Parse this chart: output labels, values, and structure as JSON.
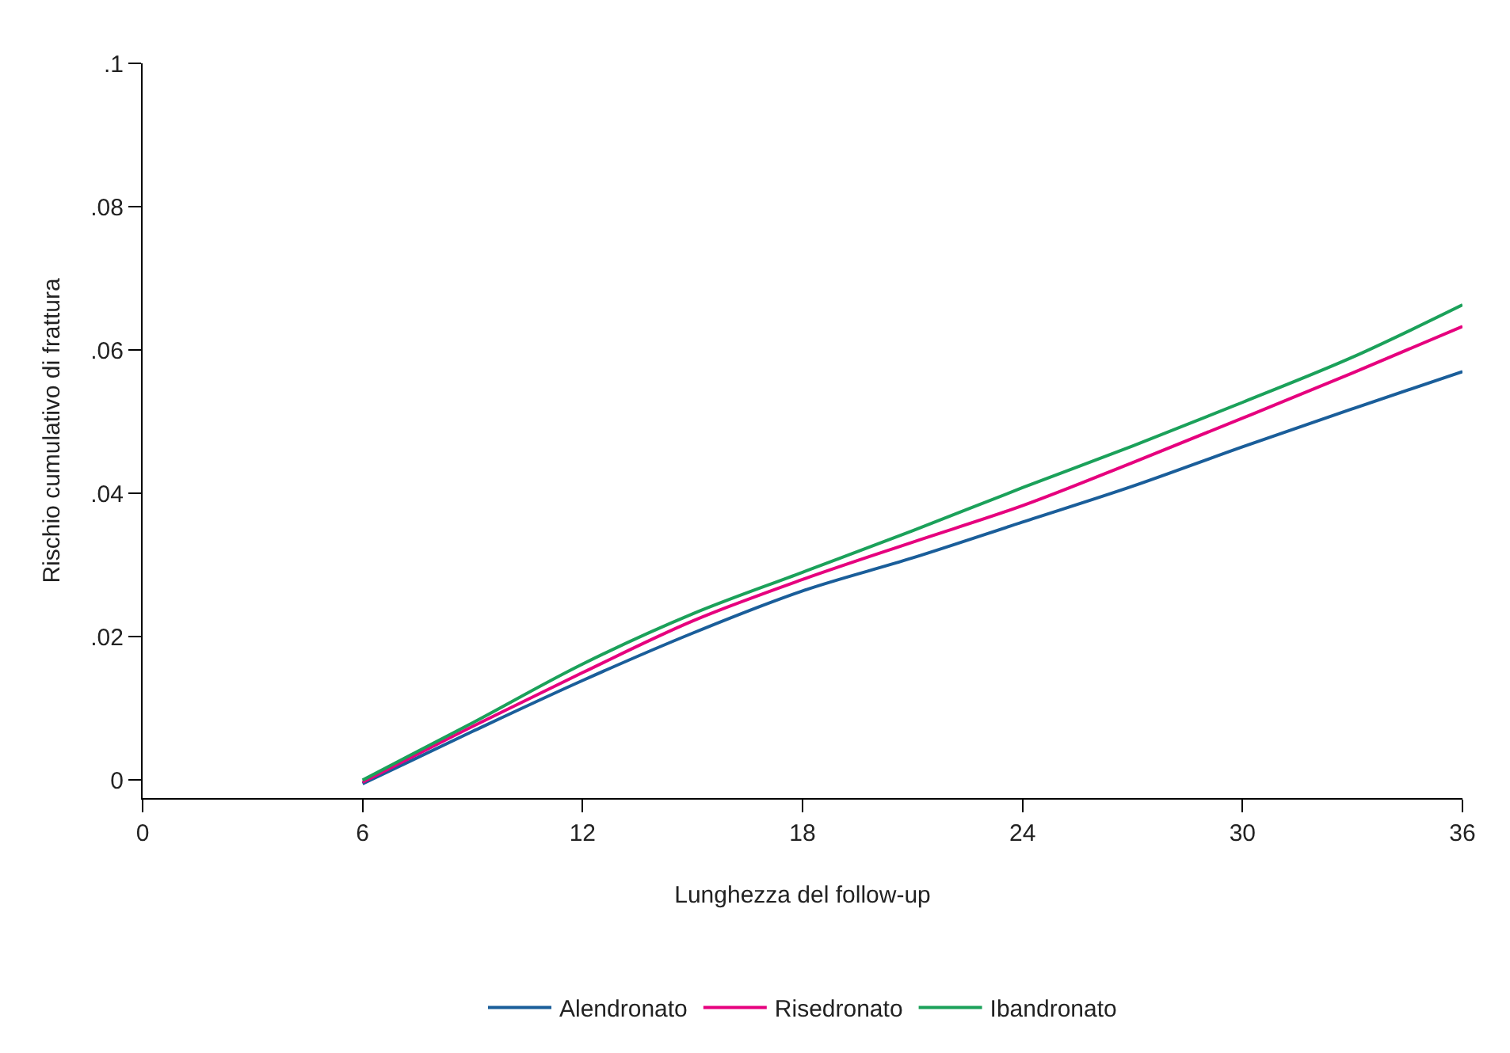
{
  "chart_data": {
    "type": "line",
    "xlabel": "Lunghezza del follow-up",
    "ylabel": "Rischio cumulativo di frattura",
    "x": [
      6,
      9,
      12,
      15,
      18,
      21,
      24,
      27,
      30,
      33,
      36
    ],
    "series": [
      {
        "name": "Alendronato",
        "color": "#1a5e9a",
        "values": [
          -0.0005,
          0.0068,
          0.0139,
          0.0205,
          0.0264,
          0.031,
          0.036,
          0.041,
          0.0465,
          0.0518,
          0.057
        ]
      },
      {
        "name": "Risedronato",
        "color": "#e6007e",
        "values": [
          -0.0003,
          0.0075,
          0.015,
          0.0222,
          0.028,
          0.0332,
          0.0383,
          0.0443,
          0.0505,
          0.0568,
          0.0633
        ]
      },
      {
        "name": "Ibandronato",
        "color": "#1ba15a",
        "values": [
          0.0,
          0.008,
          0.0162,
          0.0232,
          0.029,
          0.0348,
          0.0408,
          0.0466,
          0.0527,
          0.059,
          0.0663
        ]
      }
    ],
    "xlim": [
      0,
      36
    ],
    "xticks": [
      0,
      6,
      12,
      18,
      24,
      30,
      36
    ],
    "ylim": [
      -0.0025,
      0.1
    ],
    "yticks": [
      {
        "value": 0,
        "label": "0"
      },
      {
        "value": 0.02,
        "label": ".02"
      },
      {
        "value": 0.04,
        "label": ".04"
      },
      {
        "value": 0.06,
        "label": ".06"
      },
      {
        "value": 0.08,
        "label": ".08"
      },
      {
        "value": 0.1,
        "label": ".1"
      }
    ],
    "legend": "bottom",
    "marker": "none",
    "line_style": "solid"
  }
}
